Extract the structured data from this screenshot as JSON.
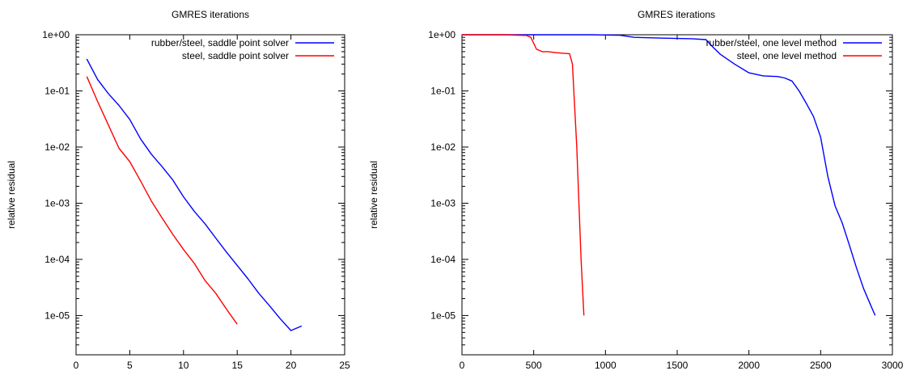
{
  "chart_data": [
    {
      "type": "line",
      "title": "GMRES iterations",
      "xlabel": "",
      "ylabel": "relative residual",
      "xlim": [
        0,
        25
      ],
      "ylim": [
        2e-06,
        1
      ],
      "yscale": "log",
      "grid": false,
      "legend_position": "top-right",
      "x_ticks": [
        0,
        5,
        10,
        15,
        20,
        25
      ],
      "x_tick_labels": [
        "0",
        "5",
        "10",
        "15",
        "20",
        "25"
      ],
      "y_ticks": [
        1,
        0.1,
        0.01,
        0.001,
        0.0001,
        1e-05
      ],
      "y_tick_labels": [
        "1e+00",
        "1e-01",
        "1e-02",
        "1e-03",
        "1e-04",
        "1e-05"
      ],
      "series": [
        {
          "name": "rubber/steel, saddle point solver",
          "color": "#0000ff",
          "x": [
            1,
            2,
            3,
            4,
            5,
            6,
            7,
            8,
            9,
            10,
            11,
            12,
            13,
            14,
            15,
            16,
            17,
            18,
            19,
            20,
            21
          ],
          "y": [
            0.37,
            0.16,
            0.09,
            0.055,
            0.031,
            0.014,
            0.0075,
            0.0045,
            0.0026,
            0.0013,
            0.00072,
            0.00043,
            0.00024,
            0.000135,
            7.8e-05,
            4.5e-05,
            2.5e-05,
            1.5e-05,
            8.8e-06,
            5.4e-06,
            6.5e-06
          ]
        },
        {
          "name": "steel, saddle point solver",
          "color": "#ff0000",
          "x": [
            1,
            2,
            3,
            4,
            5,
            6,
            7,
            8,
            9,
            10,
            11,
            12,
            13,
            14,
            15
          ],
          "y": [
            0.18,
            0.065,
            0.025,
            0.0095,
            0.0055,
            0.0025,
            0.0011,
            0.00055,
            0.00028,
            0.00015,
            8.5e-05,
            4.2e-05,
            2.5e-05,
            1.3e-05,
            7e-06
          ]
        }
      ]
    },
    {
      "type": "line",
      "title": "GMRES iterations",
      "xlabel": "",
      "ylabel": "relative residual",
      "xlim": [
        0,
        3000
      ],
      "ylim": [
        2e-06,
        1
      ],
      "yscale": "log",
      "grid": false,
      "legend_position": "top-right",
      "x_ticks": [
        0,
        500,
        1000,
        1500,
        2000,
        2500,
        3000
      ],
      "x_tick_labels": [
        "0",
        "500",
        "1000",
        "1500",
        "2000",
        "2500",
        "3000"
      ],
      "y_ticks": [
        1,
        0.1,
        0.01,
        0.001,
        0.0001,
        1e-05
      ],
      "y_tick_labels": [
        "1e+00",
        "1e-01",
        "1e-02",
        "1e-03",
        "1e-04",
        "1e-05"
      ],
      "series": [
        {
          "name": "rubber/steel, one level method",
          "color": "#0000ff",
          "x": [
            0,
            300,
            600,
            900,
            1100,
            1200,
            1400,
            1600,
            1700,
            1750,
            1800,
            1900,
            2000,
            2100,
            2200,
            2250,
            2300,
            2350,
            2400,
            2450,
            2500,
            2550,
            2600,
            2650,
            2700,
            2750,
            2800,
            2850,
            2880
          ],
          "y": [
            1,
            1,
            1,
            1,
            0.98,
            0.9,
            0.87,
            0.85,
            0.82,
            0.6,
            0.45,
            0.3,
            0.21,
            0.185,
            0.18,
            0.17,
            0.15,
            0.1,
            0.06,
            0.035,
            0.015,
            0.003,
            0.0009,
            0.00045,
            0.00018,
            7e-05,
            3e-05,
            1.5e-05,
            1e-05
          ]
        },
        {
          "name": "steel, one level method",
          "color": "#ff0000",
          "x": [
            0,
            300,
            450,
            480,
            520,
            560,
            600,
            650,
            700,
            750,
            770,
            800,
            830,
            850
          ],
          "y": [
            1,
            1,
            0.97,
            0.9,
            0.55,
            0.5,
            0.5,
            0.48,
            0.47,
            0.46,
            0.3,
            0.01,
            0.0001,
            1e-05
          ]
        }
      ]
    }
  ]
}
